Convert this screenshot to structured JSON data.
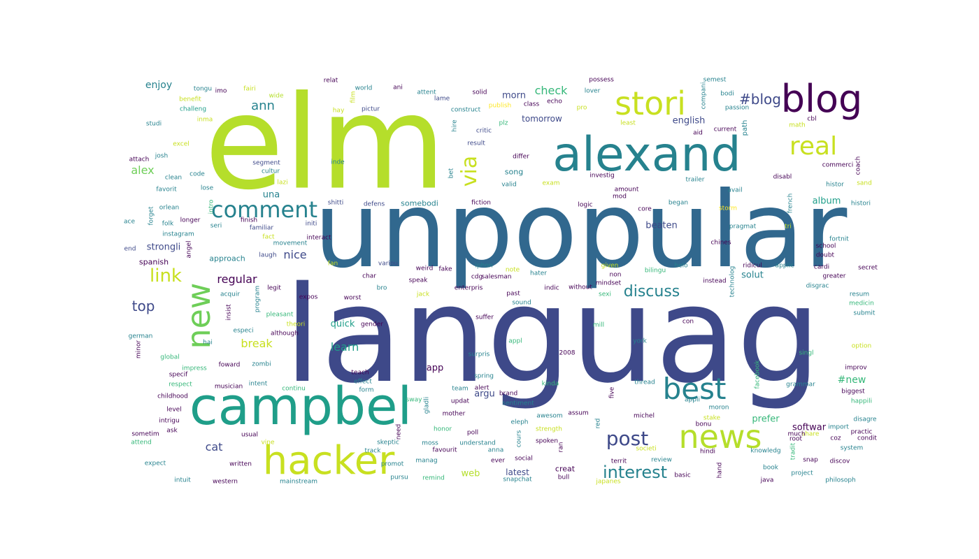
{
  "palette": {
    "purple_dark": "#440154",
    "indigo": "#3e4989",
    "blue": "#31688e",
    "teal": "#26828e",
    "green_teal": "#1f9e89",
    "green": "#35b779",
    "light_green": "#6ece58",
    "yellow_green": "#b5de2b",
    "yellow": "#fde725"
  },
  "words": [
    {
      "text": "elm",
      "color": "#b5de2b"
    },
    {
      "text": "unpopular",
      "color": "#31688e"
    },
    {
      "text": "languag",
      "color": "#3e4989"
    },
    {
      "text": "alexand",
      "color": "#26828e"
    },
    {
      "text": "campbel",
      "color": "#1f9e89"
    },
    {
      "text": "hacker",
      "color": "#c8e020"
    },
    {
      "text": "blog",
      "color": "#440154"
    },
    {
      "text": "stori",
      "color": "#c8e020"
    },
    {
      "text": "news",
      "color": "#b5de2b"
    },
    {
      "text": "best",
      "color": "#26828e"
    },
    {
      "text": "new",
      "color": "#6ece58"
    },
    {
      "text": "comment",
      "color": "#26828e"
    },
    {
      "text": "real",
      "color": "#c8e020"
    },
    {
      "text": "post",
      "color": "#3e4989"
    },
    {
      "text": "interest",
      "color": "#26828e"
    },
    {
      "text": "via",
      "color": "#c8e020"
    },
    {
      "text": "link",
      "color": "#c8e020"
    },
    {
      "text": "#blog",
      "color": "#3e4989"
    },
    {
      "text": "discuss",
      "color": "#26828e"
    },
    {
      "text": "top",
      "color": "#3e4989"
    },
    {
      "text": "ann",
      "color": "#26828e"
    },
    {
      "text": "check",
      "color": "#35b779"
    },
    {
      "text": "alex",
      "color": "#6ece58"
    },
    {
      "text": "break",
      "color": "#c8e020"
    },
    {
      "text": "learn",
      "color": "#1f9e89"
    },
    {
      "text": "cat",
      "color": "#3e4989"
    },
    {
      "text": "nice",
      "color": "#3e4989"
    },
    {
      "text": "regular",
      "color": "#440154"
    },
    {
      "text": "enjoy",
      "color": "#26828e"
    },
    {
      "text": "english",
      "color": "#3e4989"
    },
    {
      "text": "morn",
      "color": "#3e4989"
    },
    {
      "text": "tomorrow",
      "color": "#3e4989"
    },
    {
      "text": "strongli",
      "color": "#3e4989"
    },
    {
      "text": "quick",
      "color": "#1f9e89"
    },
    {
      "text": "must",
      "color": "#3e4989"
    },
    {
      "text": "beaten",
      "color": "#3e4989"
    },
    {
      "text": "solut",
      "color": "#26828e"
    },
    {
      "text": "album",
      "color": "#1f9e89"
    },
    {
      "text": "argu",
      "color": "#3e4989"
    },
    {
      "text": "prefer",
      "color": "#35b779"
    },
    {
      "text": "softwar",
      "color": "#440154"
    },
    {
      "text": "una",
      "color": "#26828e"
    },
    {
      "text": "web",
      "color": "#b5de2b"
    },
    {
      "text": "latest",
      "color": "#3e4989"
    },
    {
      "text": "#new",
      "color": "#35b779"
    },
    {
      "text": "app",
      "color": "#440154"
    },
    {
      "text": "song",
      "color": "#26828e"
    },
    {
      "text": "approach",
      "color": "#26828e"
    },
    {
      "text": "spanish",
      "color": "#440154"
    },
    {
      "text": "creat",
      "color": "#440154"
    },
    {
      "text": "somebodi",
      "color": "#26828e"
    },
    {
      "text": "comment",
      "color": "#26828e"
    },
    {
      "text": "world",
      "color": "#26828e"
    },
    {
      "text": "attent",
      "color": "#26828e"
    },
    {
      "text": "solid",
      "color": "#440154"
    },
    {
      "text": "class",
      "color": "#440154"
    },
    {
      "text": "lover",
      "color": "#26828e"
    },
    {
      "text": "possess",
      "color": "#440154"
    },
    {
      "text": "semest",
      "color": "#26828e"
    },
    {
      "text": "bodi",
      "color": "#26828e"
    },
    {
      "text": "passion",
      "color": "#26828e"
    },
    {
      "text": "relat",
      "color": "#440154"
    },
    {
      "text": "ani",
      "color": "#440154"
    },
    {
      "text": "lame",
      "color": "#3e4989"
    },
    {
      "text": "construct",
      "color": "#26828e"
    },
    {
      "text": "pictur",
      "color": "#3e4989"
    },
    {
      "text": "hay",
      "color": "#c8e020"
    },
    {
      "text": "publish",
      "color": "#fde725"
    },
    {
      "text": "echo",
      "color": "#440154"
    },
    {
      "text": "critic",
      "color": "#3e4989"
    },
    {
      "text": "plz",
      "color": "#35b779"
    },
    {
      "text": "result",
      "color": "#3e4989"
    },
    {
      "text": "differ",
      "color": "#440154"
    },
    {
      "text": "tongu",
      "color": "#26828e"
    },
    {
      "text": "imo",
      "color": "#440154"
    },
    {
      "text": "fairi",
      "color": "#c8e020"
    },
    {
      "text": "wide",
      "color": "#b5de2b"
    },
    {
      "text": "benefit",
      "color": "#c8e020"
    },
    {
      "text": "challeng",
      "color": "#1f9e89"
    },
    {
      "text": "studi",
      "color": "#26828e"
    },
    {
      "text": "inma",
      "color": "#c8e020"
    },
    {
      "text": "excel",
      "color": "#c8e020"
    },
    {
      "text": "attach",
      "color": "#440154"
    },
    {
      "text": "josh",
      "color": "#26828e"
    },
    {
      "text": "clean",
      "color": "#26828e"
    },
    {
      "text": "code",
      "color": "#26828e"
    },
    {
      "text": "favorit",
      "color": "#26828e"
    },
    {
      "text": "lose",
      "color": "#26828e"
    },
    {
      "text": "segment",
      "color": "#3e4989"
    },
    {
      "text": "cultur",
      "color": "#26828e"
    },
    {
      "text": "inde",
      "color": "#26828e"
    },
    {
      "text": "ace",
      "color": "#26828e"
    },
    {
      "text": "orlean",
      "color": "#26828e"
    },
    {
      "text": "folk",
      "color": "#26828e"
    },
    {
      "text": "longer",
      "color": "#440154"
    },
    {
      "text": "instagram",
      "color": "#26828e"
    },
    {
      "text": "finish",
      "color": "#440154"
    },
    {
      "text": "familiar",
      "color": "#3e4989"
    },
    {
      "text": "seri",
      "color": "#26828e"
    },
    {
      "text": "initi",
      "color": "#3e4989"
    },
    {
      "text": "fact",
      "color": "#c8e020"
    },
    {
      "text": "interact",
      "color": "#440154"
    },
    {
      "text": "movement",
      "color": "#26828e"
    },
    {
      "text": "laugh",
      "color": "#3e4989"
    },
    {
      "text": "end",
      "color": "#3e4989"
    },
    {
      "text": "fan",
      "color": "#c8e020"
    },
    {
      "text": "shitti",
      "color": "#3e4989"
    },
    {
      "text": "defens",
      "color": "#3e4989"
    },
    {
      "text": "fiction",
      "color": "#440154"
    },
    {
      "text": "variou",
      "color": "#3e4989"
    },
    {
      "text": "weird",
      "color": "#440154"
    },
    {
      "text": "fake",
      "color": "#440154"
    },
    {
      "text": "iphon",
      "color": "#26828e"
    },
    {
      "text": "note",
      "color": "#c8e020"
    },
    {
      "text": "hater",
      "color": "#26828e"
    },
    {
      "text": "bro",
      "color": "#26828e"
    },
    {
      "text": "char",
      "color": "#440154"
    },
    {
      "text": "salesman",
      "color": "#440154"
    },
    {
      "text": "speak",
      "color": "#440154"
    },
    {
      "text": "enterpris",
      "color": "#440154"
    },
    {
      "text": "past",
      "color": "#440154"
    },
    {
      "text": "indic",
      "color": "#440154"
    },
    {
      "text": "sound",
      "color": "#26828e"
    },
    {
      "text": "jack",
      "color": "#c8e020"
    },
    {
      "text": "worst",
      "color": "#440154"
    },
    {
      "text": "expos",
      "color": "#440154"
    },
    {
      "text": "legit",
      "color": "#440154"
    },
    {
      "text": "acquir",
      "color": "#26828e"
    },
    {
      "text": "pleasant",
      "color": "#35b779"
    },
    {
      "text": "theori",
      "color": "#c8e020"
    },
    {
      "text": "gender",
      "color": "#440154"
    },
    {
      "text": "especi",
      "color": "#26828e"
    },
    {
      "text": "although",
      "color": "#440154"
    },
    {
      "text": "suffer",
      "color": "#440154"
    },
    {
      "text": "mill",
      "color": "#35b779"
    },
    {
      "text": "con",
      "color": "#440154"
    },
    {
      "text": "york",
      "color": "#26828e"
    },
    {
      "text": "german",
      "color": "#26828e"
    },
    {
      "text": "hai",
      "color": "#26828e"
    },
    {
      "text": "global",
      "color": "#35b779"
    },
    {
      "text": "impress",
      "color": "#35b779"
    },
    {
      "text": "foward",
      "color": "#440154"
    },
    {
      "text": "zombi",
      "color": "#26828e"
    },
    {
      "text": "teach",
      "color": "#440154"
    },
    {
      "text": "surpris",
      "color": "#26828e"
    },
    {
      "text": "2008",
      "color": "#440154"
    },
    {
      "text": "singl",
      "color": "#35b779"
    },
    {
      "text": "improv",
      "color": "#440154"
    },
    {
      "text": "option",
      "color": "#c8e020"
    },
    {
      "text": "specif",
      "color": "#440154"
    },
    {
      "text": "respect",
      "color": "#35b779"
    },
    {
      "text": "musician",
      "color": "#440154"
    },
    {
      "text": "intent",
      "color": "#26828e"
    },
    {
      "text": "effect",
      "color": "#26828e"
    },
    {
      "text": "form",
      "color": "#26828e"
    },
    {
      "text": "continu",
      "color": "#35b779"
    },
    {
      "text": "spring",
      "color": "#26828e"
    },
    {
      "text": "team",
      "color": "#26828e"
    },
    {
      "text": "alert",
      "color": "#440154"
    },
    {
      "text": "brand",
      "color": "#440154"
    },
    {
      "text": "kinda",
      "color": "#35b779"
    },
    {
      "text": "thread",
      "color": "#26828e"
    },
    {
      "text": "grammar",
      "color": "#26828e"
    },
    {
      "text": "biggest",
      "color": "#440154"
    },
    {
      "text": "happili",
      "color": "#35b779"
    },
    {
      "text": "childhood",
      "color": "#440154"
    },
    {
      "text": "sway",
      "color": "#35b779"
    },
    {
      "text": "updat",
      "color": "#440154"
    },
    {
      "text": "sentiment",
      "color": "#26828e"
    },
    {
      "text": "mother",
      "color": "#440154"
    },
    {
      "text": "level",
      "color": "#440154"
    },
    {
      "text": "intrigu",
      "color": "#440154"
    },
    {
      "text": "awesom",
      "color": "#26828e"
    },
    {
      "text": "assum",
      "color": "#440154"
    },
    {
      "text": "appli",
      "color": "#26828e"
    },
    {
      "text": "moron",
      "color": "#26828e"
    },
    {
      "text": "michel",
      "color": "#440154"
    },
    {
      "text": "stake",
      "color": "#c8e020"
    },
    {
      "text": "bonu",
      "color": "#440154"
    },
    {
      "text": "disagre",
      "color": "#26828e"
    },
    {
      "text": "strength",
      "color": "#c8e020"
    },
    {
      "text": "sometim",
      "color": "#440154"
    },
    {
      "text": "ask",
      "color": "#440154"
    },
    {
      "text": "usual",
      "color": "#440154"
    },
    {
      "text": "attend",
      "color": "#35b779"
    },
    {
      "text": "vine",
      "color": "#c8e020"
    },
    {
      "text": "track",
      "color": "#26828e"
    },
    {
      "text": "skeptic",
      "color": "#26828e"
    },
    {
      "text": "moss",
      "color": "#26828e"
    },
    {
      "text": "understand",
      "color": "#26828e"
    },
    {
      "text": "spoken",
      "color": "#440154"
    },
    {
      "text": "societi",
      "color": "#c8e020"
    },
    {
      "text": "review",
      "color": "#26828e"
    },
    {
      "text": "hindi",
      "color": "#440154"
    },
    {
      "text": "knowledg",
      "color": "#26828e"
    },
    {
      "text": "share",
      "color": "#c8e020"
    },
    {
      "text": "practic",
      "color": "#440154"
    },
    {
      "text": "condit",
      "color": "#440154"
    },
    {
      "text": "coz",
      "color": "#440154"
    },
    {
      "text": "root",
      "color": "#440154"
    },
    {
      "text": "much",
      "color": "#440154"
    },
    {
      "text": "system",
      "color": "#26828e"
    },
    {
      "text": "import",
      "color": "#26828e"
    },
    {
      "text": "expect",
      "color": "#26828e"
    },
    {
      "text": "written",
      "color": "#440154"
    },
    {
      "text": "promot",
      "color": "#26828e"
    },
    {
      "text": "manag",
      "color": "#26828e"
    },
    {
      "text": "favourit",
      "color": "#440154"
    },
    {
      "text": "anna",
      "color": "#26828e"
    },
    {
      "text": "ever",
      "color": "#440154"
    },
    {
      "text": "social",
      "color": "#440154"
    },
    {
      "text": "territ",
      "color": "#440154"
    },
    {
      "text": "book",
      "color": "#26828e"
    },
    {
      "text": "snap",
      "color": "#440154"
    },
    {
      "text": "discov",
      "color": "#440154"
    },
    {
      "text": "project",
      "color": "#26828e"
    },
    {
      "text": "java",
      "color": "#440154"
    },
    {
      "text": "intuit",
      "color": "#26828e"
    },
    {
      "text": "western",
      "color": "#440154"
    },
    {
      "text": "mainstream",
      "color": "#26828e"
    },
    {
      "text": "pursu",
      "color": "#26828e"
    },
    {
      "text": "remind",
      "color": "#35b779"
    },
    {
      "text": "snapchat",
      "color": "#26828e"
    },
    {
      "text": "bull",
      "color": "#440154"
    },
    {
      "text": "japanes",
      "color": "#c8e020"
    },
    {
      "text": "basic",
      "color": "#440154"
    },
    {
      "text": "philosoph",
      "color": "#26828e"
    },
    {
      "text": "compani",
      "color": "#26828e"
    },
    {
      "text": "aid",
      "color": "#440154"
    },
    {
      "text": "current",
      "color": "#440154"
    },
    {
      "text": "path",
      "color": "#26828e"
    },
    {
      "text": "math",
      "color": "#c8e020"
    },
    {
      "text": "cbl",
      "color": "#440154"
    },
    {
      "text": "least",
      "color": "#c8e020"
    },
    {
      "text": "pro",
      "color": "#c8e020"
    },
    {
      "text": "investig",
      "color": "#440154"
    },
    {
      "text": "exam",
      "color": "#c8e020"
    },
    {
      "text": "valid",
      "color": "#26828e"
    },
    {
      "text": "bet",
      "color": "#26828e"
    },
    {
      "text": "amount",
      "color": "#440154"
    },
    {
      "text": "mod",
      "color": "#440154"
    },
    {
      "text": "trailer",
      "color": "#26828e"
    },
    {
      "text": "avail",
      "color": "#26828e"
    },
    {
      "text": "disabl",
      "color": "#440154"
    },
    {
      "text": "commerci",
      "color": "#440154"
    },
    {
      "text": "coach",
      "color": "#440154"
    },
    {
      "text": "histor",
      "color": "#26828e"
    },
    {
      "text": "sand",
      "color": "#c8e020"
    },
    {
      "text": "logic",
      "color": "#440154"
    },
    {
      "text": "core",
      "color": "#440154"
    },
    {
      "text": "began",
      "color": "#26828e"
    },
    {
      "text": "french",
      "color": "#26828e"
    },
    {
      "text": "histori",
      "color": "#26828e"
    },
    {
      "text": "storm",
      "color": "#fde725"
    },
    {
      "text": "pragmat",
      "color": "#26828e"
    },
    {
      "text": "tri",
      "color": "#c8e020"
    },
    {
      "text": "fortnit",
      "color": "#26828e"
    },
    {
      "text": "chines",
      "color": "#440154"
    },
    {
      "text": "school",
      "color": "#440154"
    },
    {
      "text": "doubt",
      "color": "#440154"
    },
    {
      "text": "given",
      "color": "#c8e020"
    },
    {
      "text": "non",
      "color": "#440154"
    },
    {
      "text": "mindset",
      "color": "#440154"
    },
    {
      "text": "helo",
      "color": "#26828e"
    },
    {
      "text": "bilingu",
      "color": "#35b779"
    },
    {
      "text": "ridicul",
      "color": "#440154"
    },
    {
      "text": "applic",
      "color": "#26828e"
    },
    {
      "text": "cardi",
      "color": "#440154"
    },
    {
      "text": "secret",
      "color": "#440154"
    },
    {
      "text": "greater",
      "color": "#440154"
    },
    {
      "text": "technolog",
      "color": "#26828e"
    },
    {
      "text": "instead",
      "color": "#440154"
    },
    {
      "text": "without",
      "color": "#440154"
    },
    {
      "text": "sexi",
      "color": "#35b779"
    },
    {
      "text": "disgrac",
      "color": "#26828e"
    },
    {
      "text": "resum",
      "color": "#26828e"
    },
    {
      "text": "medicin",
      "color": "#35b779"
    },
    {
      "text": "submit",
      "color": "#26828e"
    },
    {
      "text": "facebook",
      "color": "#35b779"
    },
    {
      "text": "five",
      "color": "#440154"
    },
    {
      "text": "red",
      "color": "#26828e"
    },
    {
      "text": "ran",
      "color": "#440154"
    },
    {
      "text": "cours",
      "color": "#26828e"
    },
    {
      "text": "eleph",
      "color": "#26828e"
    },
    {
      "text": "honor",
      "color": "#35b779"
    },
    {
      "text": "need",
      "color": "#440154"
    },
    {
      "text": "poll",
      "color": "#440154"
    },
    {
      "text": "gladli",
      "color": "#26828e"
    },
    {
      "text": "appl",
      "color": "#35b779"
    },
    {
      "text": "hire",
      "color": "#26828e"
    },
    {
      "text": "film",
      "color": "#c8e020"
    },
    {
      "text": "tradit",
      "color": "#35b779"
    },
    {
      "text": "hand",
      "color": "#440154"
    },
    {
      "text": "insist",
      "color": "#440154"
    },
    {
      "text": "program",
      "color": "#26828e"
    },
    {
      "text": "forget",
      "color": "#26828e"
    },
    {
      "text": "minor",
      "color": "#440154"
    },
    {
      "text": "angel",
      "color": "#440154"
    },
    {
      "text": "intro",
      "color": "#35b779"
    },
    {
      "text": "lazi",
      "color": "#c8e020"
    },
    {
      "text": "cdg",
      "color": "#440154"
    }
  ]
}
